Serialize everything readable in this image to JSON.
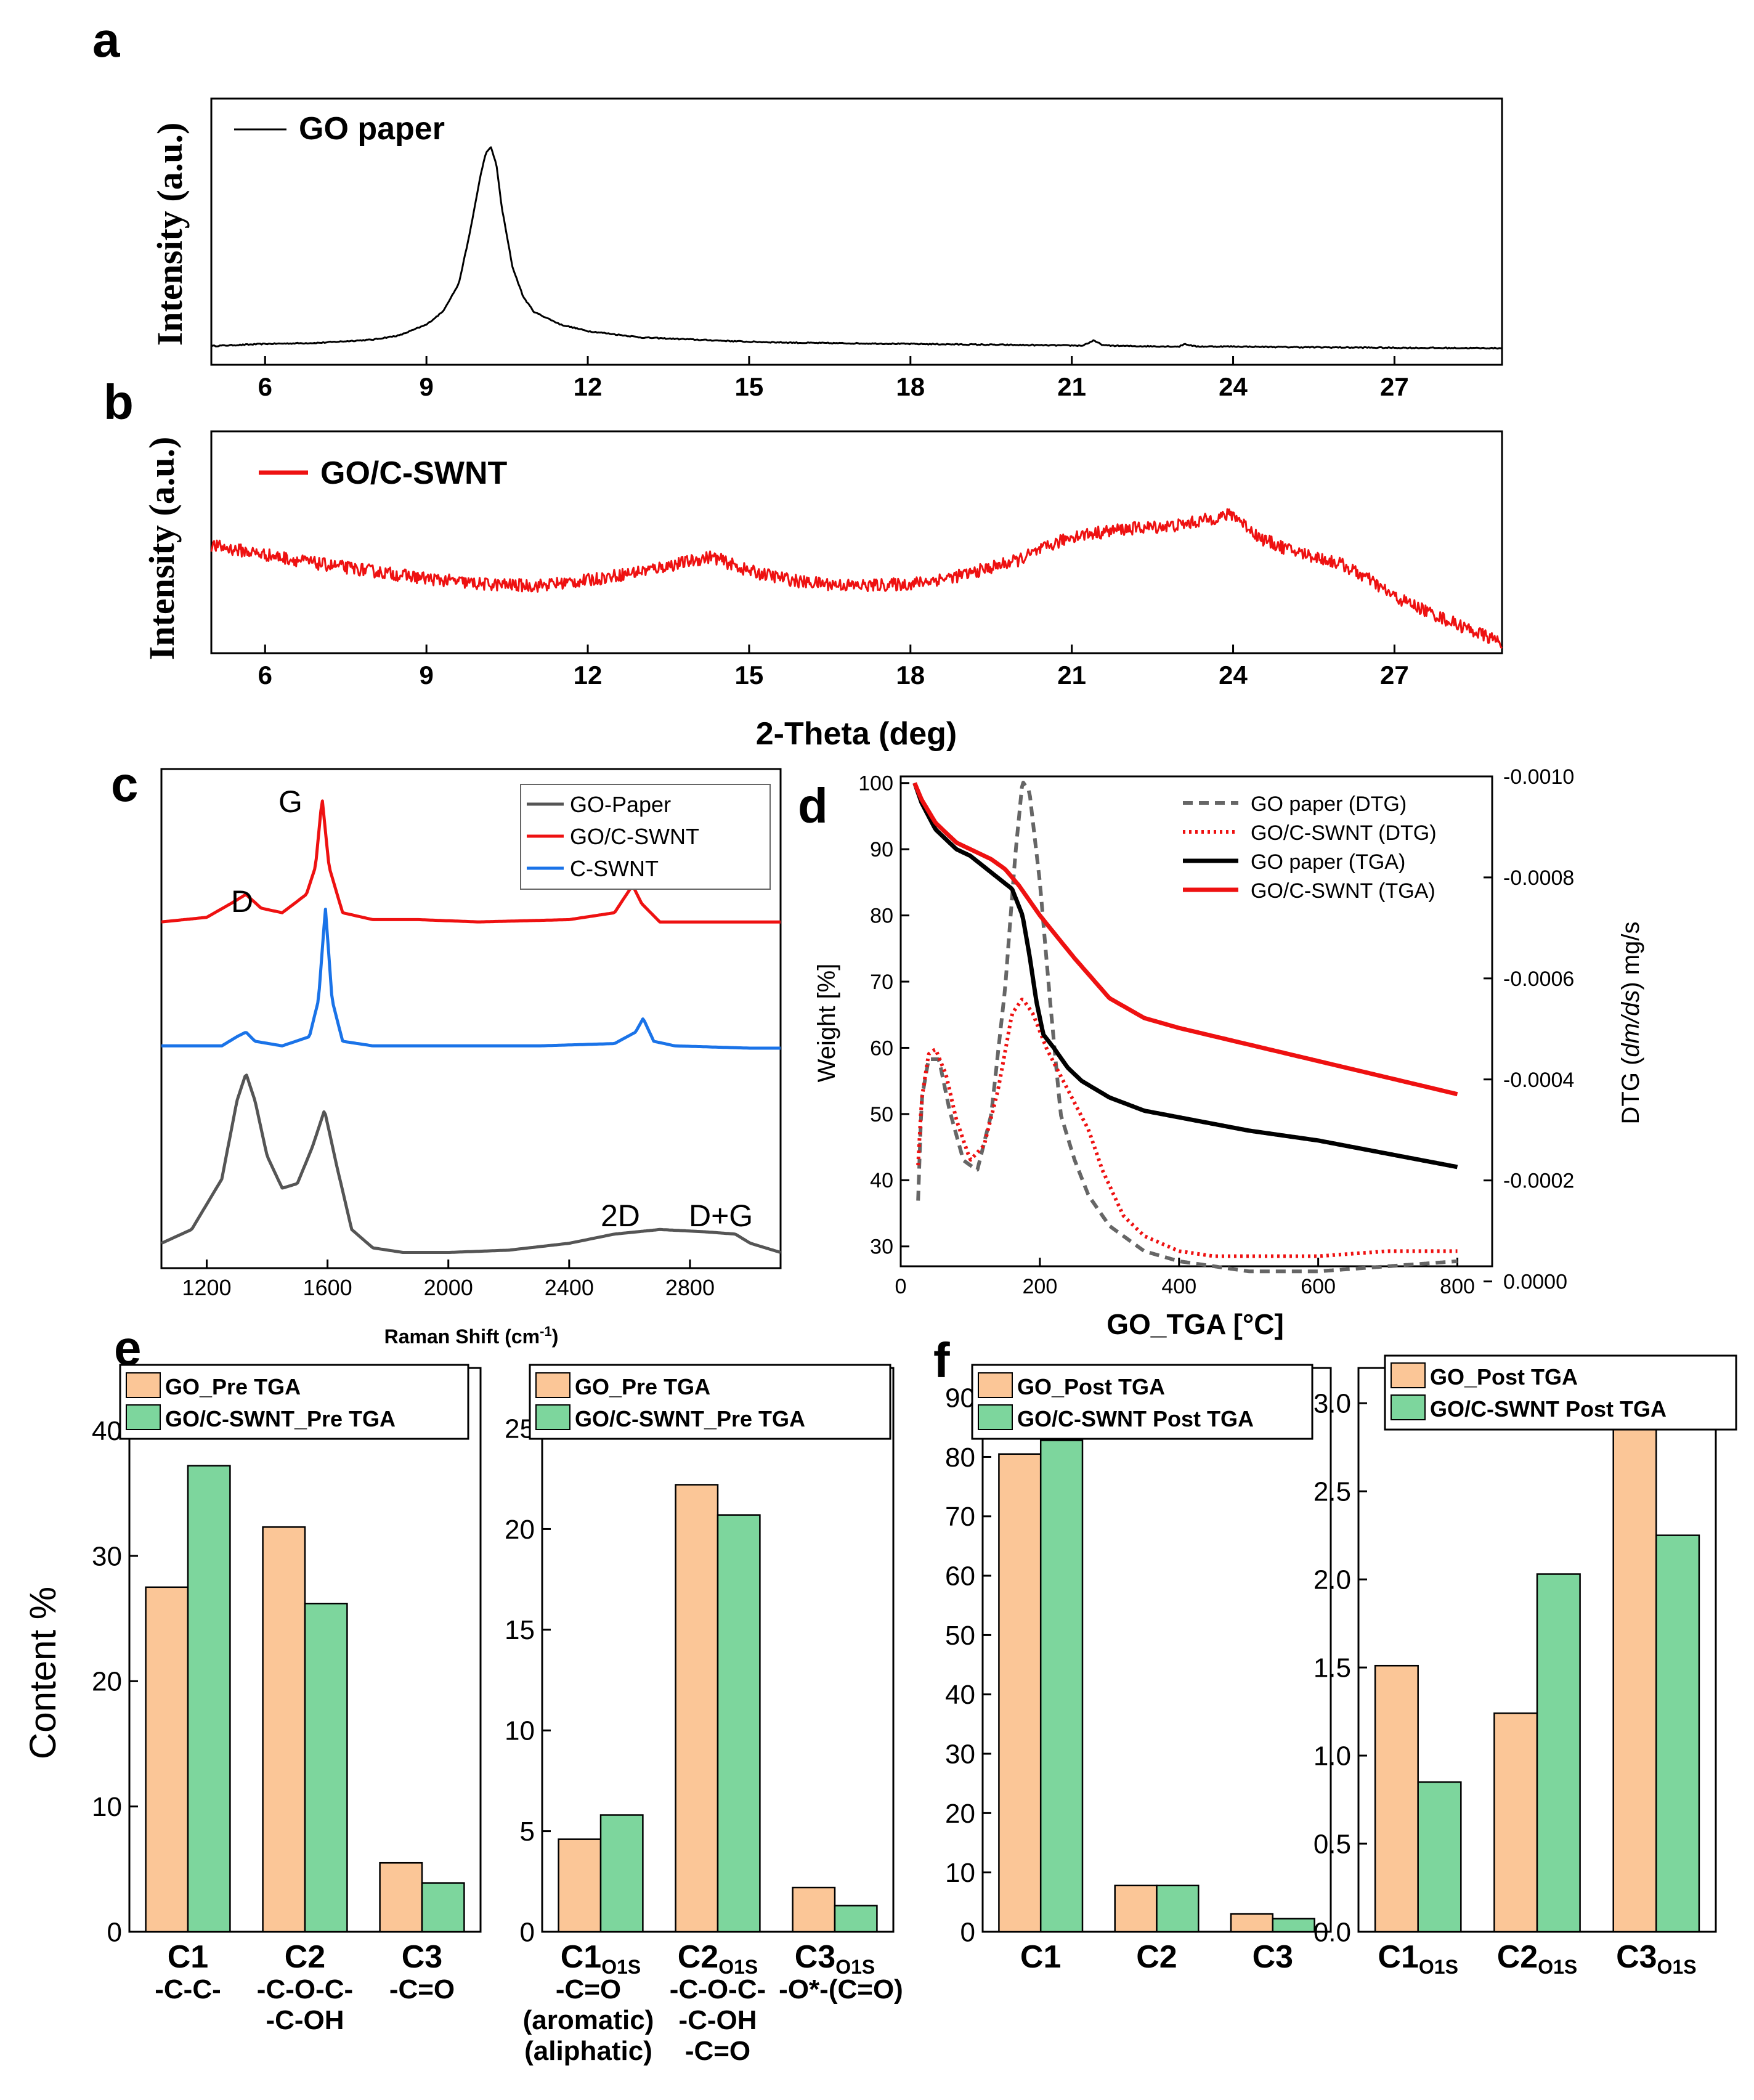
{
  "figure": {
    "panel_labels": [
      "a",
      "b",
      "c",
      "d",
      "e",
      "f"
    ],
    "shared_xlabel_ab": "2-Theta (deg)"
  },
  "colors": {
    "go": "#000000",
    "goc": "#ee1111",
    "cswnt": "#1a73e8",
    "gopaper_raman": "#555555",
    "pre": "#fbc697",
    "green": "#7dd69d",
    "dtg_gray": "#666666"
  },
  "chart_data": [
    {
      "id": "a",
      "type": "line",
      "title": "",
      "xlabel": "",
      "ylabel": "Intensity (a.u.)",
      "xlim": [
        5,
        29
      ],
      "ylim": [
        0,
        100
      ],
      "xticks": [
        6,
        9,
        12,
        15,
        18,
        21,
        24,
        27
      ],
      "legend": [
        "GO paper"
      ],
      "legend_position": "top-left",
      "series": [
        {
          "name": "GO paper",
          "color_key": "go",
          "x": [
            5,
            6,
            7,
            8,
            8.5,
            9,
            9.3,
            9.6,
            9.8,
            10.0,
            10.1,
            10.2,
            10.3,
            10.4,
            10.6,
            10.8,
            11,
            11.5,
            12,
            13,
            14,
            15,
            16,
            18,
            20,
            21.2,
            21.4,
            21.6,
            22,
            23,
            23.1,
            23.3,
            24,
            25,
            27,
            29
          ],
          "y": [
            3,
            4,
            4.5,
            6,
            8,
            13,
            19,
            32,
            55,
            82,
            93,
            96,
            88,
            68,
            40,
            26,
            19,
            13,
            10,
            7,
            6,
            5,
            4.5,
            4,
            3.5,
            3.2,
            5.5,
            3.3,
            3,
            2.8,
            4.0,
            2.8,
            2.8,
            2.5,
            2.2,
            2.0
          ]
        }
      ]
    },
    {
      "id": "b",
      "type": "line",
      "title": "",
      "xlabel": "2-Theta (deg)",
      "ylabel": "Intensity (a.u.)",
      "xlim": [
        5,
        29
      ],
      "ylim": [
        0,
        100
      ],
      "xticks": [
        6,
        9,
        12,
        15,
        18,
        21,
        24,
        27
      ],
      "legend": [
        "GO/C-SWNT"
      ],
      "legend_position": "top-left",
      "series": [
        {
          "name": "GO/C-SWNT",
          "color_key": "goc",
          "x": [
            5,
            6,
            7,
            8,
            9,
            10,
            11,
            12,
            13,
            14,
            14.3,
            15,
            16,
            17,
            18,
            19,
            20,
            21,
            22,
            23,
            24,
            24.5,
            25,
            26,
            26.5,
            27,
            28,
            29
          ],
          "y": [
            58,
            53,
            48,
            44,
            40,
            37,
            36,
            39,
            44,
            50,
            52,
            44,
            38,
            36,
            37,
            42,
            50,
            63,
            67,
            69,
            75,
            62,
            56,
            48,
            40,
            30,
            17,
            5
          ]
        }
      ]
    },
    {
      "id": "c",
      "type": "line",
      "title": "",
      "xlabel": "Raman Shift (cm",
      "xlabel_sup": "-1",
      "xlabel_close": ")",
      "ylabel": "",
      "xlim": [
        1050,
        3100
      ],
      "ylim": [
        0,
        100
      ],
      "xticks": [
        1200,
        1600,
        2000,
        2400,
        2800
      ],
      "legend": [
        "GO-Paper",
        "GO/C-SWNT",
        "C-SWNT"
      ],
      "legend_position": "top-right",
      "annotations": [
        "D",
        "G",
        "2D",
        "D+G"
      ],
      "series": [
        {
          "name": "GO-Paper",
          "color_key": "gopaper_raman",
          "x": [
            1050,
            1150,
            1250,
            1300,
            1330,
            1360,
            1400,
            1450,
            1500,
            1550,
            1590,
            1630,
            1680,
            1750,
            1850,
            2000,
            2200,
            2400,
            2550,
            2700,
            2850,
            2950,
            3000,
            3100
          ],
          "y": [
            3,
            6,
            17,
            34,
            40,
            34,
            22,
            15,
            16,
            24,
            32,
            20,
            6,
            2,
            1,
            1,
            1.5,
            3,
            5,
            6,
            5.5,
            5,
            3,
            1
          ]
        },
        {
          "name": "C-SWNT",
          "color_key": "cswnt",
          "x": [
            1050,
            1250,
            1300,
            1330,
            1360,
            1450,
            1540,
            1570,
            1593,
            1615,
            1650,
            1750,
            2000,
            2300,
            2550,
            2620,
            2645,
            2680,
            2750,
            3000,
            3100
          ],
          "y": [
            46,
            46,
            48,
            49,
            47,
            46,
            48,
            56,
            76,
            56,
            47,
            46,
            46,
            46,
            46.5,
            49,
            52,
            47,
            46,
            45.5,
            45.5
          ]
        },
        {
          "name": "GO/C-SWNT",
          "color_key": "goc",
          "x": [
            1050,
            1200,
            1280,
            1330,
            1380,
            1450,
            1530,
            1560,
            1582,
            1605,
            1650,
            1750,
            1900,
            2100,
            2400,
            2550,
            2590,
            2610,
            2640,
            2700,
            2900,
            3100
          ],
          "y": [
            73,
            74,
            77,
            79,
            76,
            75,
            79,
            85,
            100,
            85,
            75,
            73.5,
            73.5,
            73,
            73.5,
            75,
            79,
            81,
            77,
            73,
            73,
            73
          ]
        }
      ]
    },
    {
      "id": "d",
      "type": "line",
      "title": "",
      "xlabel": "GO_TGA [°C]",
      "ylabel": "Weight [%]",
      "ylabel_right": "DTG (dm/ds) mg/s",
      "ylabel_right_parts": [
        "DTG (",
        "dm/ds",
        ") mg/s"
      ],
      "xlim": [
        0,
        850
      ],
      "ylim": [
        27,
        101
      ],
      "ylim_right": [
        -3e-05,
        -0.001
      ],
      "xticks": [
        0,
        200,
        400,
        600,
        800
      ],
      "yticks": [
        30,
        40,
        50,
        60,
        70,
        80,
        90,
        100
      ],
      "yticks_right": [
        0.0,
        -0.0002,
        -0.0004,
        -0.0006,
        -0.0008,
        -0.001
      ],
      "yticks_right_labels": [
        "0.0000",
        "-0.0002",
        "-0.0004",
        "-0.0006",
        "-0.0008",
        "-0.0010"
      ],
      "legend": [
        "GO paper (DTG)",
        "GO/C-SWNT (DTG)",
        "GO paper (TGA)",
        "GO/C-SWNT (TGA)"
      ],
      "legend_position": "top-right",
      "series": [
        {
          "name": "GO paper (DTG)",
          "axis": "right",
          "style": "dashed",
          "color_key": "dtg_gray",
          "x": [
            25,
            30,
            40,
            55,
            70,
            90,
            110,
            130,
            150,
            165,
            175,
            185,
            200,
            215,
            230,
            250,
            270,
            300,
            350,
            400,
            500,
            600,
            700,
            800
          ],
          "y": [
            -0.00016,
            -0.00036,
            -0.00044,
            -0.00044,
            -0.00034,
            -0.00024,
            -0.00022,
            -0.00033,
            -0.00058,
            -0.00085,
            -0.00099,
            -0.00097,
            -0.00079,
            -0.00055,
            -0.00033,
            -0.00024,
            -0.00017,
            -0.00011,
            -6e-05,
            -4e-05,
            -2e-05,
            -2e-05,
            -3e-05,
            -4e-05
          ]
        },
        {
          "name": "GO/C-SWNT (DTG)",
          "axis": "right",
          "style": "dotted",
          "color_key": "goc",
          "x": [
            25,
            30,
            40,
            50,
            65,
            80,
            100,
            120,
            140,
            160,
            175,
            190,
            210,
            240,
            270,
            290,
            320,
            350,
            400,
            450,
            500,
            550,
            600,
            700,
            800
          ],
          "y": [
            -0.00023,
            -0.00036,
            -0.00045,
            -0.00046,
            -0.00041,
            -0.00032,
            -0.00024,
            -0.00027,
            -0.00038,
            -0.00053,
            -0.00056,
            -0.00053,
            -0.00046,
            -0.00038,
            -0.0003,
            -0.00022,
            -0.00013,
            -9e-05,
            -6e-05,
            -5e-05,
            -5e-05,
            -5e-05,
            -5e-05,
            -6e-05,
            -6e-05
          ]
        },
        {
          "name": "GO paper (TGA)",
          "axis": "left",
          "style": "solid",
          "color_key": "go",
          "x": [
            20,
            30,
            50,
            80,
            100,
            130,
            160,
            175,
            185,
            195,
            205,
            220,
            240,
            260,
            300,
            350,
            400,
            500,
            600,
            700,
            800
          ],
          "y": [
            100,
            97,
            93,
            90,
            89,
            86.5,
            84,
            80,
            74,
            67,
            62,
            60,
            57,
            55,
            52.5,
            50.5,
            49.5,
            47.5,
            46,
            44,
            42
          ]
        },
        {
          "name": "GO/C-SWNT (TGA)",
          "axis": "left",
          "style": "solid",
          "color_key": "goc",
          "x": [
            20,
            30,
            50,
            80,
            100,
            130,
            150,
            170,
            200,
            250,
            300,
            350,
            400,
            500,
            600,
            700,
            800
          ],
          "y": [
            100,
            97.5,
            94,
            91,
            90,
            88.5,
            87,
            84.5,
            80,
            73.5,
            67.5,
            64.5,
            63,
            60.5,
            58,
            55.5,
            53
          ]
        }
      ]
    },
    {
      "id": "e1",
      "type": "bar",
      "title": "",
      "xlabel": "",
      "ylabel": "Content %",
      "ylim": [
        0,
        45
      ],
      "yticks": [
        0,
        10,
        20,
        30,
        40
      ],
      "legend": [
        "GO_Pre TGA",
        "GO/C-SWNT_Pre TGA"
      ],
      "legend_position": "top",
      "categories": [
        "C1",
        "C2",
        "C3"
      ],
      "category_sublabels": [
        [
          "-C-C-"
        ],
        [
          "-C-O-C-",
          "-C-OH"
        ],
        [
          "-C=O"
        ]
      ],
      "series": [
        {
          "name": "GO_Pre TGA",
          "color_key": "pre",
          "values": [
            27.5,
            32.3,
            5.5
          ]
        },
        {
          "name": "GO/C-SWNT_Pre TGA",
          "color_key": "green",
          "values": [
            37.2,
            26.2,
            3.9
          ]
        }
      ]
    },
    {
      "id": "e2",
      "type": "bar",
      "title": "",
      "xlabel": "",
      "ylabel": "",
      "ylim": [
        0,
        28
      ],
      "yticks": [
        0,
        5,
        10,
        15,
        20,
        25
      ],
      "legend": [
        "GO_Pre TGA",
        "GO/C-SWNT_Pre TGA"
      ],
      "legend_position": "top",
      "categories": [
        "C1",
        "C2",
        "C3"
      ],
      "category_subscript": "O1S",
      "category_sublabels": [
        [
          "-C=O",
          "(aromatic)",
          "(aliphatic)"
        ],
        [
          "-C-O-C-",
          "-C-OH",
          "-C=O"
        ],
        [
          "-O*-(C=O)"
        ]
      ],
      "series": [
        {
          "name": "GO_Pre TGA",
          "color_key": "pre",
          "values": [
            4.6,
            22.2,
            2.2
          ]
        },
        {
          "name": "GO/C-SWNT_Pre TGA",
          "color_key": "green",
          "values": [
            5.8,
            20.7,
            1.3
          ]
        }
      ]
    },
    {
      "id": "f1",
      "type": "bar",
      "title": "",
      "xlabel": "",
      "ylabel": "",
      "ylim": [
        0,
        95
      ],
      "yticks": [
        0,
        10,
        20,
        30,
        40,
        50,
        60,
        70,
        80,
        90
      ],
      "legend": [
        "GO_Post TGA",
        "GO/C-SWNT Post TGA"
      ],
      "legend_position": "top",
      "categories": [
        "C1",
        "C2",
        "C3"
      ],
      "series": [
        {
          "name": "GO_Post TGA",
          "color_key": "pre",
          "values": [
            80.5,
            7.8,
            3.0
          ]
        },
        {
          "name": "GO/C-SWNT Post TGA",
          "color_key": "green",
          "values": [
            82.8,
            7.8,
            2.2
          ]
        }
      ]
    },
    {
      "id": "f2",
      "type": "bar",
      "title": "",
      "xlabel": "",
      "ylabel": "",
      "ylim": [
        0,
        3.2
      ],
      "yticks": [
        0.0,
        0.5,
        1.0,
        1.5,
        2.0,
        2.5,
        3.0
      ],
      "legend": [
        "GO_Post TGA",
        "GO/C-SWNT Post TGA"
      ],
      "legend_position": "top",
      "categories": [
        "C1",
        "C2",
        "C3"
      ],
      "category_subscript": "O1S",
      "series": [
        {
          "name": "GO_Post TGA",
          "color_key": "pre",
          "values": [
            1.51,
            1.24,
            2.89
          ]
        },
        {
          "name": "GO/C-SWNT Post TGA",
          "color_key": "green",
          "values": [
            0.85,
            2.03,
            2.25
          ]
        }
      ]
    }
  ]
}
